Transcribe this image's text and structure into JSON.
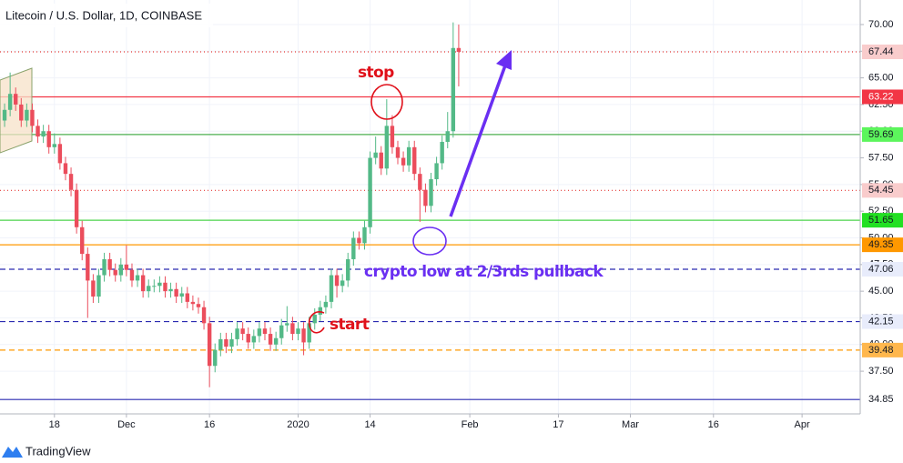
{
  "chart_data": {
    "type": "candlestick",
    "title": "Litecoin / U.S. Dollar, 1D, COINBASE",
    "footer": "TradingView",
    "up_color": "#53b987",
    "down_color": "#eb4d5c",
    "grid": true,
    "ylim": [
      33.5,
      72.3
    ],
    "yticks": [
      {
        "value": 37.5,
        "label": "37.50"
      },
      {
        "value": 40,
        "label": "40.00"
      },
      {
        "value": 42.5,
        "label": "42.50"
      },
      {
        "value": 45,
        "label": "45.00"
      },
      {
        "value": 47.5,
        "label": "47.50"
      },
      {
        "value": 50,
        "label": "50.00"
      },
      {
        "value": 52.5,
        "label": "52.50"
      },
      {
        "value": 55,
        "label": "55.00"
      },
      {
        "value": 57.5,
        "label": "57.50"
      },
      {
        "value": 60,
        "label": "60.00"
      },
      {
        "value": 62.5,
        "label": "62.50"
      },
      {
        "value": 65,
        "label": "65.00"
      },
      {
        "value": 67.5,
        "label": "67.50"
      },
      {
        "value": 70,
        "label": "70.00"
      }
    ],
    "categories": [
      null,
      null,
      null,
      null,
      null,
      null,
      null,
      null,
      null,
      "18",
      null,
      null,
      null,
      null,
      null,
      null,
      null,
      null,
      null,
      null,
      null,
      null,
      "Dec",
      null,
      null,
      null,
      null,
      null,
      null,
      null,
      null,
      null,
      null,
      null,
      null,
      null,
      null,
      "16",
      null,
      null,
      null,
      null,
      null,
      null,
      null,
      null,
      null,
      null,
      null,
      null,
      null,
      null,
      null,
      "2020",
      null,
      null,
      null,
      null,
      null,
      null,
      null,
      null,
      null,
      null,
      null,
      null,
      "14",
      null,
      null,
      null,
      null,
      null,
      null,
      null,
      null,
      null,
      null,
      null,
      null,
      null,
      null,
      null,
      null,
      null,
      "Feb",
      null,
      null,
      null,
      null,
      null,
      null,
      null,
      null,
      null,
      null,
      null,
      null,
      null,
      null,
      null,
      "17",
      null,
      null,
      null,
      null,
      null,
      null,
      null,
      null,
      null,
      null,
      null,
      null,
      "Mar",
      null,
      null,
      null,
      null,
      null,
      null,
      null,
      null,
      null,
      null,
      null,
      null,
      null,
      null,
      "16",
      null,
      null,
      null,
      null,
      null,
      null,
      null,
      null,
      null,
      null,
      null,
      null,
      null,
      null,
      null,
      "Apr",
      null,
      null,
      null,
      null,
      null,
      null,
      null,
      null,
      null,
      null
    ],
    "open": [
      61.0,
      62.0,
      63.5,
      62.5,
      61.0,
      62.0,
      60.5,
      59.5,
      60.0,
      58.5,
      58.8,
      57.0,
      56.0,
      54.5,
      51.0,
      48.5,
      46.0,
      44.5,
      46.5,
      48.0,
      47.0,
      46.5,
      47.5,
      47.0,
      46.0,
      46.5,
      45.0,
      45.5,
      45.5,
      45.8,
      45.0,
      45.2,
      44.5,
      44.8,
      44.0,
      43.8,
      43.5,
      42.0,
      38.0,
      39.5,
      40.5,
      39.8,
      40.5,
      41.5,
      41.0,
      40.2,
      40.8,
      41.5,
      41.0,
      40.0,
      40.6,
      41.8,
      42.0,
      41.0,
      41.5,
      40.2,
      42.0,
      42.8,
      43.5,
      44.0,
      46.5,
      45.5,
      46.0,
      48.0,
      50.0,
      49.5,
      51.0,
      57.5,
      58.0,
      56.5,
      60.5,
      58.5,
      57.5,
      56.8,
      58.5,
      56.0,
      54.5,
      53.0,
      55.5,
      57.0,
      59.0,
      60.0,
      67.8,
      null,
      null,
      null,
      null,
      null,
      null,
      null,
      null,
      null,
      null,
      null,
      null,
      null,
      null,
      null,
      null,
      null,
      null,
      null,
      null,
      null,
      null,
      null,
      null,
      null,
      null,
      null,
      null,
      null,
      null,
      null,
      null,
      null,
      null,
      null,
      null,
      null,
      null,
      null,
      null,
      null,
      null,
      null,
      null,
      null,
      null,
      null,
      null,
      null,
      null,
      null,
      null,
      null,
      null,
      null,
      null,
      null,
      null,
      null,
      null,
      null,
      null,
      null,
      null,
      null,
      null,
      null,
      null,
      null,
      null,
      null,
      null
    ],
    "high": [
      62.6,
      65.5,
      64.1,
      63.1,
      62.6,
      62.6,
      61.1,
      60.6,
      60.6,
      59.8,
      59.4,
      57.6,
      56.6,
      55.1,
      51.6,
      49.1,
      46.6,
      47.1,
      48.6,
      48.6,
      47.6,
      48.1,
      49.3,
      47.6,
      47.1,
      47.1,
      46.1,
      46.1,
      46.4,
      46.4,
      45.8,
      45.8,
      45.4,
      45.4,
      44.6,
      44.4,
      44.1,
      42.6,
      40.1,
      41.1,
      41.1,
      41.1,
      42.1,
      42.1,
      41.6,
      41.4,
      42.1,
      42.1,
      41.6,
      41.2,
      42.4,
      43.6,
      42.6,
      42.1,
      42.1,
      42.6,
      43.4,
      44.1,
      44.6,
      47.1,
      47.1,
      46.6,
      48.6,
      50.6,
      50.6,
      51.6,
      58.1,
      59.5,
      58.6,
      63.0,
      61.5,
      59.1,
      58.1,
      59.1,
      59.1,
      56.6,
      55.1,
      56.1,
      57.6,
      59.6,
      61.8,
      70.2,
      70.0,
      null,
      null,
      null,
      null,
      null,
      null,
      null,
      null,
      null,
      null,
      null,
      null,
      null,
      null,
      null,
      null,
      null,
      null,
      null,
      null,
      null,
      null,
      null,
      null,
      null,
      null,
      null,
      null,
      null,
      null,
      null,
      null,
      null,
      null,
      null,
      null,
      null,
      null,
      null,
      null,
      null,
      null,
      null,
      null,
      null,
      null,
      null,
      null,
      null,
      null,
      null,
      null,
      null,
      null,
      null,
      null,
      null,
      null,
      null,
      null,
      null,
      null,
      null,
      null,
      null,
      null,
      null,
      null,
      null,
      null,
      null,
      null
    ],
    "low": [
      60.4,
      61.4,
      61.9,
      60.4,
      60.4,
      59.9,
      58.9,
      58.9,
      57.9,
      57.9,
      56.4,
      55.4,
      53.9,
      50.4,
      47.9,
      42.5,
      43.9,
      43.9,
      45.9,
      46.4,
      45.9,
      45.9,
      46.4,
      45.4,
      45.4,
      44.4,
      44.4,
      44.9,
      44.9,
      44.4,
      44.4,
      43.9,
      43.9,
      43.4,
      43.2,
      42.9,
      41.4,
      36.0,
      37.4,
      38.9,
      39.2,
      39.2,
      39.9,
      40.4,
      39.6,
      39.6,
      40.2,
      40.4,
      39.4,
      39.4,
      40.0,
      41.2,
      40.4,
      40.4,
      39.0,
      39.6,
      41.4,
      42.2,
      42.9,
      43.4,
      44.4,
      44.9,
      45.4,
      47.4,
      48.9,
      48.9,
      50.4,
      56.9,
      55.9,
      55.9,
      57.9,
      56.9,
      56.2,
      56.2,
      55.4,
      51.5,
      52.4,
      52.4,
      54.9,
      56.4,
      58.4,
      59.4,
      64.2,
      null,
      null,
      null,
      null,
      null,
      null,
      null,
      null,
      null,
      null,
      null,
      null,
      null,
      null,
      null,
      null,
      null,
      null,
      null,
      null,
      null,
      null,
      null,
      null,
      null,
      null,
      null,
      null,
      null,
      null,
      null,
      null,
      null,
      null,
      null,
      null,
      null,
      null,
      null,
      null,
      null,
      null,
      null,
      null,
      null,
      null,
      null,
      null,
      null,
      null,
      null,
      null,
      null,
      null,
      null,
      null,
      null,
      null,
      null,
      null,
      null,
      null,
      null,
      null,
      null,
      null,
      null,
      null,
      null,
      null,
      null,
      null
    ],
    "close": [
      62.0,
      63.5,
      62.5,
      61.0,
      62.0,
      60.5,
      59.5,
      60.0,
      58.5,
      58.8,
      57.0,
      56.0,
      54.5,
      51.0,
      48.5,
      46.0,
      44.5,
      46.5,
      48.0,
      47.0,
      46.5,
      47.5,
      47.0,
      46.0,
      46.5,
      45.0,
      45.5,
      45.5,
      45.8,
      45.0,
      45.2,
      44.5,
      44.8,
      44.0,
      43.8,
      43.5,
      42.0,
      38.0,
      39.5,
      40.5,
      39.8,
      40.5,
      41.5,
      41.0,
      40.2,
      40.8,
      41.5,
      41.0,
      40.0,
      40.6,
      41.8,
      42.0,
      41.0,
      41.5,
      40.2,
      42.0,
      42.8,
      43.5,
      44.0,
      46.5,
      45.5,
      46.0,
      48.0,
      50.0,
      49.5,
      51.0,
      57.5,
      58.0,
      56.5,
      60.5,
      58.5,
      57.5,
      56.8,
      58.5,
      56.0,
      54.5,
      53.0,
      55.5,
      57.0,
      59.0,
      60.0,
      67.8,
      67.44,
      null,
      null,
      null,
      null,
      null,
      null,
      null,
      null,
      null,
      null,
      null,
      null,
      null,
      null,
      null,
      null,
      null,
      null,
      null,
      null,
      null,
      null,
      null,
      null,
      null,
      null,
      null,
      null,
      null,
      null,
      null,
      null,
      null,
      null,
      null,
      null,
      null,
      null,
      null,
      null,
      null,
      null,
      null,
      null,
      null,
      null,
      null,
      null,
      null,
      null,
      null,
      null,
      null,
      null,
      null,
      null,
      null,
      null,
      null,
      null,
      null,
      null,
      null,
      null,
      null,
      null,
      null,
      null,
      null,
      null,
      null,
      null
    ],
    "levels": [
      {
        "value": 67.44,
        "color": "#e53935",
        "dash": "1,3",
        "label_bg": "#f9cccc",
        "label_color": "#131722"
      },
      {
        "value": 63.22,
        "color": "#f23645",
        "dash": "none",
        "label_bg": "#f23645",
        "label_color": "#ffffff"
      },
      {
        "value": 59.69,
        "color": "#4caf50",
        "dash": "none",
        "label_bg": "#5cf55c",
        "label_color": "#131722"
      },
      {
        "value": 54.45,
        "color": "#e53935",
        "dash": "1,3",
        "label_bg": "#f9cccc",
        "label_color": "#131722"
      },
      {
        "value": 51.65,
        "color": "#4cd44c",
        "dash": "none",
        "label_bg": "#22e022",
        "label_color": "#131722"
      },
      {
        "value": 49.35,
        "color": "#ff9800",
        "dash": "none",
        "label_bg": "#ff9800",
        "label_color": "#131722"
      },
      {
        "value": 47.06,
        "color": "#2a2ab0",
        "dash": "6,4",
        "label_bg": "#e8ecfb",
        "label_color": "#131722"
      },
      {
        "value": 42.15,
        "color": "#2a2ab0",
        "dash": "6,4",
        "label_bg": "#e8ecfb",
        "label_color": "#131722"
      },
      {
        "value": 39.48,
        "color": "#ff9800",
        "dash": "6,4",
        "label_bg": "#ffb74d",
        "label_color": "#131722"
      },
      {
        "value": 34.85,
        "color": "#2a2ab0",
        "dash": "none",
        "label_bg": "#ffffff",
        "label_color": "#131722"
      }
    ],
    "annotations": [
      {
        "text": "stop",
        "color": "#e0101a"
      },
      {
        "text": "start",
        "color": "#e0101a"
      },
      {
        "text": "crypto low at 2/3rds pullback",
        "color": "#6a2ff2"
      }
    ]
  }
}
